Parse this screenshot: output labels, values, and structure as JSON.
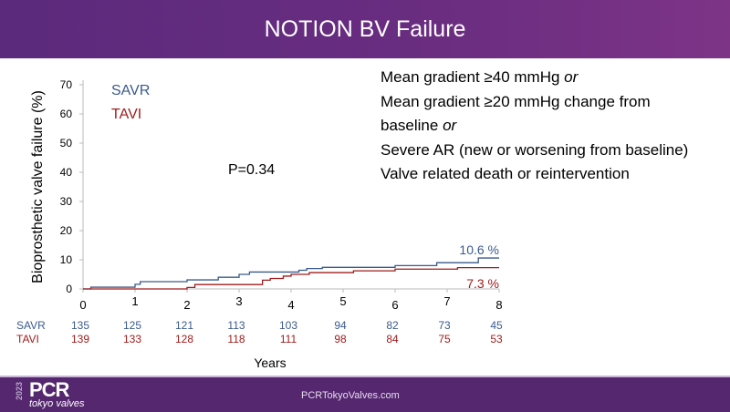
{
  "title": "NOTION BV Failure",
  "criteria": [
    "Mean gradient ≥40 mmHg or",
    "Mean gradient ≥20 mmHg change from",
    "baseline or",
    "Severe AR (new or worsening from baseline)",
    "Valve related death or reintervention"
  ],
  "footer": {
    "url": "PCRTokyoValves.com",
    "logo_text": "PCR",
    "logo_sub": "tokyo valves",
    "logo_year": "2023"
  },
  "colors": {
    "savr": "#3a5a8c",
    "tavi": "#a01c1c"
  },
  "chart_data": {
    "type": "line",
    "title": "",
    "xlabel": "Years",
    "ylabel": "Bioprosthetic valve failure (%)",
    "xlim": [
      0,
      8
    ],
    "ylim": [
      0,
      70
    ],
    "xticks": [
      0,
      1,
      2,
      3,
      4,
      5,
      6,
      7,
      8
    ],
    "yticks": [
      0,
      10,
      20,
      30,
      40,
      50,
      60,
      70
    ],
    "annotation": "P=0.34",
    "legend": [
      "SAVR",
      "TAVI"
    ],
    "series": [
      {
        "name": "SAVR",
        "end_label": "10.6 %",
        "steps": [
          [
            0,
            0
          ],
          [
            0.15,
            0.6
          ],
          [
            1.0,
            1.6
          ],
          [
            1.1,
            2.5
          ],
          [
            2.0,
            3.1
          ],
          [
            2.6,
            4.0
          ],
          [
            3.0,
            5.0
          ],
          [
            3.2,
            5.8
          ],
          [
            4.15,
            6.4
          ],
          [
            4.3,
            7.0
          ],
          [
            4.6,
            7.4
          ],
          [
            6.0,
            8.0
          ],
          [
            6.8,
            9.0
          ],
          [
            7.6,
            10.6
          ],
          [
            8,
            10.6
          ]
        ]
      },
      {
        "name": "TAVI",
        "end_label": "7.3 %",
        "steps": [
          [
            0,
            0
          ],
          [
            2.0,
            0.5
          ],
          [
            2.15,
            1.5
          ],
          [
            3.45,
            3.0
          ],
          [
            3.6,
            3.6
          ],
          [
            3.85,
            4.4
          ],
          [
            4.0,
            5.0
          ],
          [
            4.35,
            5.6
          ],
          [
            5.2,
            6.2
          ],
          [
            6.0,
            6.8
          ],
          [
            7.2,
            7.3
          ],
          [
            8,
            7.3
          ]
        ]
      }
    ],
    "risk_table": {
      "rows": [
        {
          "label": "SAVR",
          "values": [
            135,
            125,
            121,
            113,
            103,
            94,
            82,
            73,
            45
          ]
        },
        {
          "label": "TAVI",
          "values": [
            139,
            133,
            128,
            118,
            111,
            98,
            84,
            75,
            53
          ]
        }
      ]
    }
  }
}
